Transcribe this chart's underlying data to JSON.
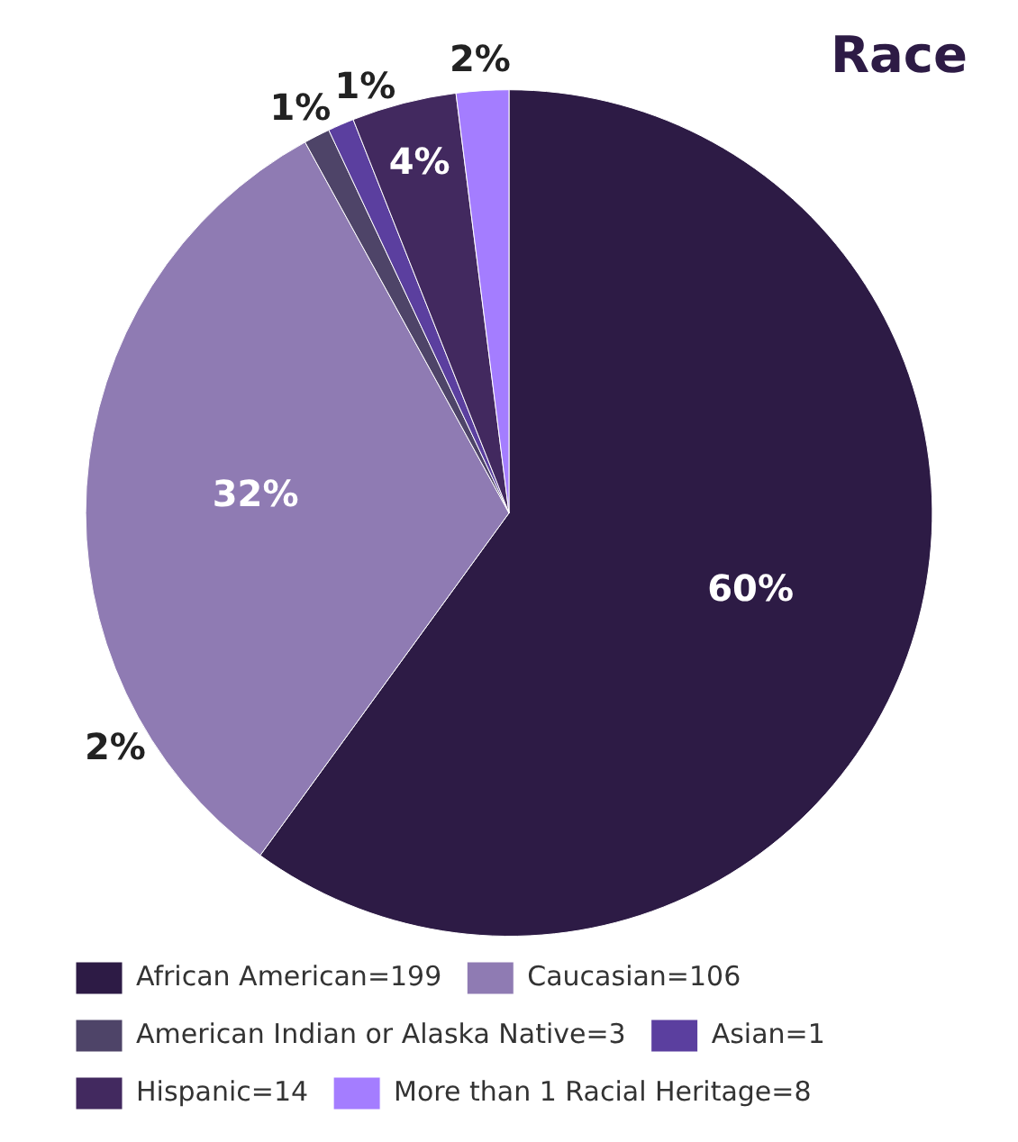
{
  "chart_data": {
    "type": "pie",
    "title": "Race",
    "categories": [
      "African American=199",
      "Caucasian=106",
      "American Indian or Alaska Native=3",
      "Asian=1",
      "Hispanic=14",
      "More than 1 Racial Heritage=8"
    ],
    "values": [
      60,
      32,
      1,
      1,
      4,
      2
    ],
    "colors": [
      "#2d1b45",
      "#8f7bb3",
      "#4e4468",
      "#5b3f9f",
      "#42295f",
      "#a47dff"
    ],
    "value_labels": [
      "60%",
      "32%",
      "1%",
      "1%",
      "4%",
      "2%"
    ],
    "annotations": [
      "2%"
    ],
    "legend": "bottom"
  }
}
